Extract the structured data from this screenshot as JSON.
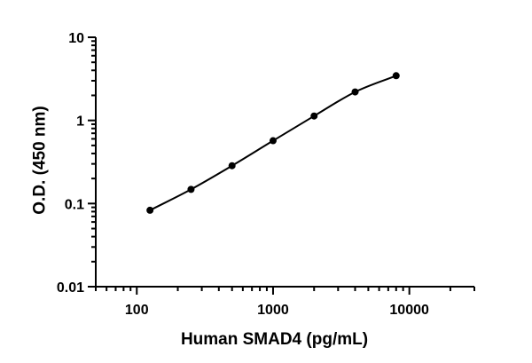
{
  "chart_data": {
    "type": "line",
    "title": "",
    "xlabel": "Human SMAD4 (pg/mL)",
    "ylabel": "O.D. (450 nm)",
    "x_scale": "log",
    "y_scale": "log",
    "xlim": [
      50,
      30000
    ],
    "ylim": [
      0.01,
      10
    ],
    "x_ticks": [
      100,
      1000,
      10000
    ],
    "x_tick_labels": [
      "100",
      "1000",
      "10000"
    ],
    "y_ticks": [
      0.01,
      0.1,
      1,
      10
    ],
    "y_tick_labels": [
      "0.01",
      "0.1",
      "1",
      "10"
    ],
    "grid": false,
    "legend": "none",
    "series": [
      {
        "x": [
          125,
          250,
          500,
          1000,
          2000,
          4000,
          8000
        ],
        "y": [
          0.083,
          0.148,
          0.285,
          0.57,
          1.13,
          2.2,
          3.45
        ],
        "color": "#000000",
        "marker": "circle"
      }
    ]
  }
}
